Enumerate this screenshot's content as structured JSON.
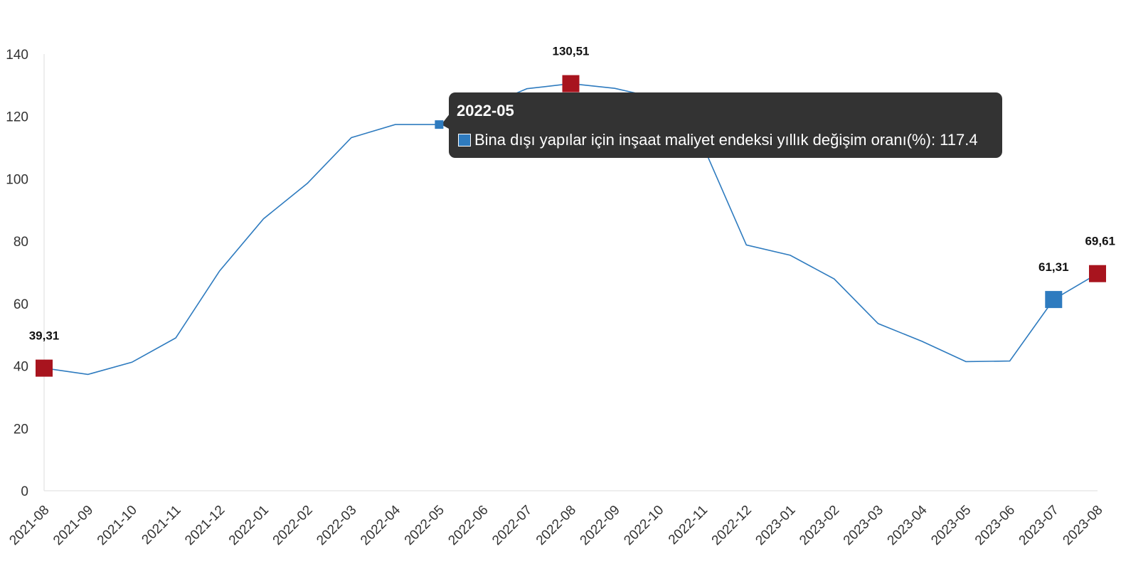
{
  "chart_data": {
    "type": "line",
    "title": "",
    "xlabel": "",
    "ylabel": "",
    "ylim": [
      0,
      140
    ],
    "yticks": [
      0,
      20,
      40,
      60,
      80,
      100,
      120,
      140
    ],
    "grid": false,
    "categories": [
      "2021-08",
      "2021-09",
      "2021-10",
      "2021-11",
      "2021-12",
      "2022-01",
      "2022-02",
      "2022-03",
      "2022-04",
      "2022-05",
      "2022-06",
      "2022-07",
      "2022-08",
      "2022-09",
      "2022-10",
      "2022-11",
      "2022-12",
      "2023-01",
      "2023-02",
      "2023-03",
      "2023-04",
      "2023-05",
      "2023-06",
      "2023-07",
      "2023-08"
    ],
    "series": [
      {
        "name": "Bina dışı yapılar için inşaat maliyet endeksi yıllık değişim oranı(%)",
        "color": "#2e7bbf",
        "values": [
          39.31,
          37.3,
          41.2,
          49.0,
          70.5,
          87.2,
          98.6,
          113.2,
          117.4,
          117.4,
          123.0,
          128.9,
          130.51,
          129.0,
          125.8,
          111.0,
          78.8,
          75.5,
          67.9,
          53.6,
          47.9,
          41.4,
          41.6,
          61.31,
          69.61
        ]
      }
    ],
    "annotations": [
      {
        "index": 0,
        "label": "39,31",
        "marker_color": "#a8141e"
      },
      {
        "index": 12,
        "label": "130,51",
        "marker_color": "#a8141e"
      },
      {
        "index": 23,
        "label": "61,31",
        "marker_color": "#2e7bbf"
      },
      {
        "index": 24,
        "label": "69,61",
        "marker_color": "#a8141e"
      }
    ],
    "tooltip": {
      "index": 9,
      "title": "2022-05",
      "series_name": "Bina dışı yapılar için inşaat maliyet endeksi yıllık değişim oranı(%)",
      "separator": ": ",
      "value": "117.4",
      "swatch_color": "#2e7bbf"
    }
  }
}
